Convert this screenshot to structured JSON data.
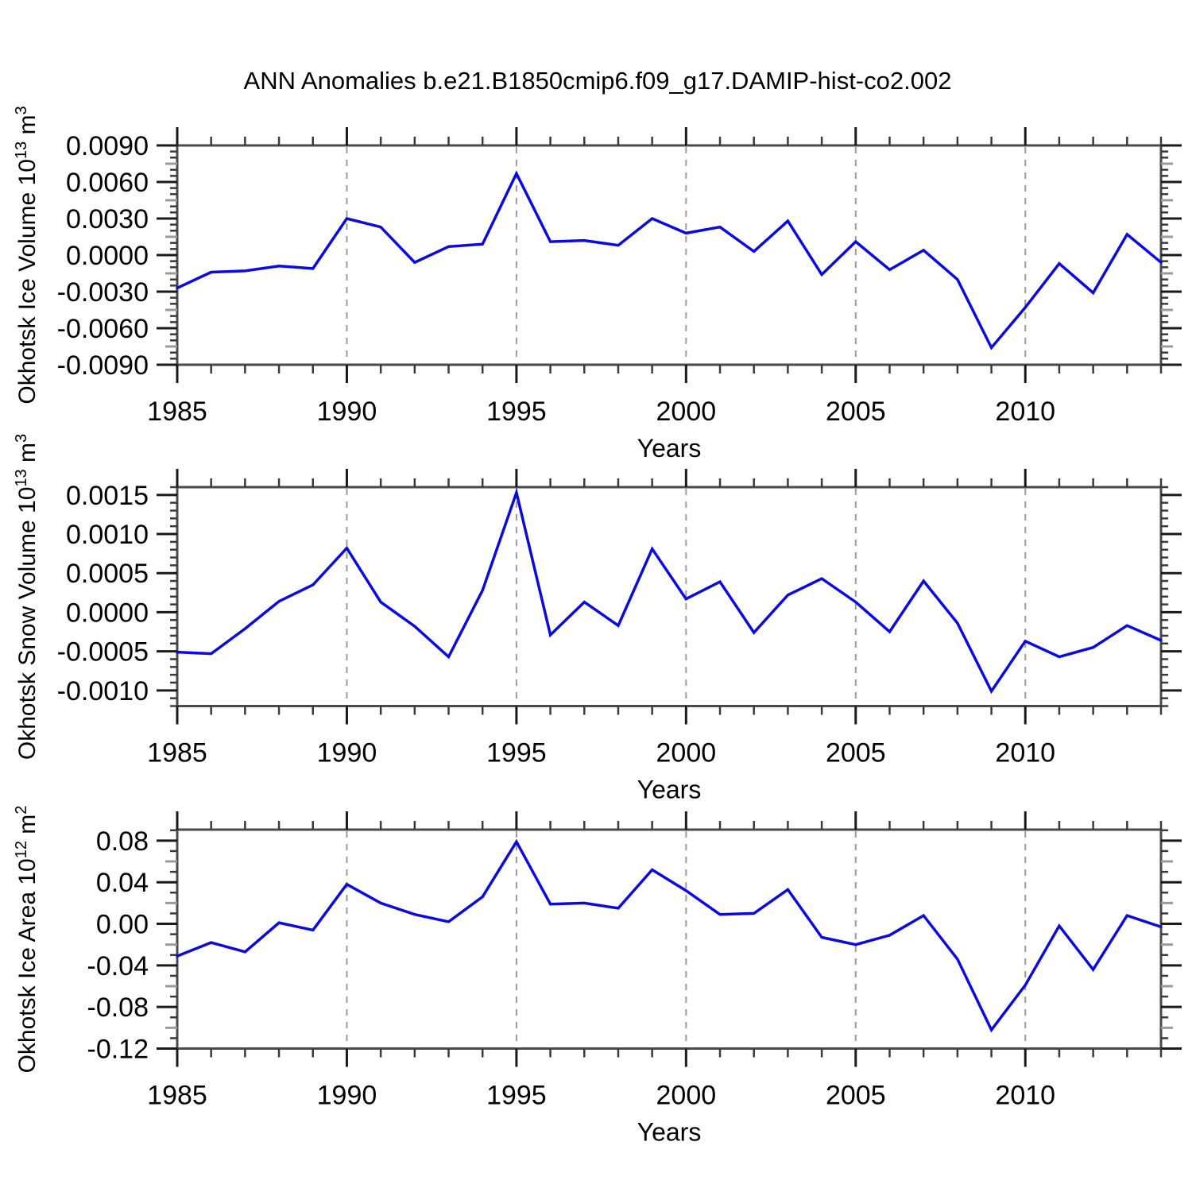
{
  "figure": {
    "title": "ANN Anomalies b.e21.B1850cmip6.f09_g17.DAMIP-hist-co2.002",
    "background": "#ffffff"
  },
  "style": {
    "line_color": "#0a0ae0",
    "frame_color": "#4a4a4a",
    "grid_color": "#9a9a9a",
    "major_tick_color": "#1a1a1a",
    "minor_tick_color": "#3a3a3a",
    "half_tick_color": "#9a9a9a",
    "text_color": "#000000"
  },
  "chart_data": [
    {
      "id": "ice_volume",
      "type": "line",
      "ylabel": {
        "prefix": "Okhotsk Ice Volume 10",
        "sup1": "13",
        "mid": " m",
        "sup2": "3"
      },
      "xlabel": "Years",
      "years": [
        1985,
        1986,
        1987,
        1988,
        1989,
        1990,
        1991,
        1992,
        1993,
        1994,
        1995,
        1996,
        1997,
        1998,
        1999,
        2000,
        2001,
        2002,
        2003,
        2004,
        2005,
        2006,
        2007,
        2008,
        2009,
        2010,
        2011,
        2012,
        2013,
        2014
      ],
      "values": [
        -0.0027,
        -0.0014,
        -0.0013,
        -0.0009,
        -0.0011,
        0.003,
        0.0023,
        -0.0006,
        0.0007,
        0.0009,
        0.0067,
        0.0011,
        0.0012,
        0.0008,
        0.003,
        0.0018,
        0.0023,
        0.0003,
        0.0028,
        -0.0016,
        0.0011,
        -0.0012,
        0.0004,
        -0.002,
        -0.0076,
        -0.0043,
        -0.0007,
        -0.0031,
        0.0017,
        -0.0006
      ],
      "xlim": [
        1985,
        2014
      ],
      "ylim": [
        -0.009,
        0.009
      ],
      "yticks": {
        "values": [
          0.009,
          0.006,
          0.003,
          0.0,
          -0.003,
          -0.006,
          -0.009
        ],
        "labels": [
          "0.0090",
          "0.0060",
          "0.0030",
          "0.0000",
          "-0.0030",
          "-0.0060",
          "-0.0090"
        ]
      },
      "ymajor_step": 0.003,
      "yminor_step": 0.0005,
      "xticks": {
        "values": [
          1985,
          1990,
          1995,
          2000,
          2005,
          2010
        ],
        "labels": [
          "1985",
          "1990",
          "1995",
          "2000",
          "2005",
          "2010"
        ]
      },
      "xminor_step": 1,
      "grid_years": [
        1990,
        1995,
        2000,
        2005,
        2010
      ]
    },
    {
      "id": "snow_volume",
      "type": "line",
      "ylabel": {
        "prefix": "Okhotsk Snow Volume 10",
        "sup1": "13",
        "mid": " m",
        "sup2": "3"
      },
      "xlabel": "Years",
      "years": [
        1985,
        1986,
        1987,
        1988,
        1989,
        1990,
        1991,
        1992,
        1993,
        1994,
        1995,
        1996,
        1997,
        1998,
        1999,
        2000,
        2001,
        2002,
        2003,
        2004,
        2005,
        2006,
        2007,
        2008,
        2009,
        2010,
        2011,
        2012,
        2013,
        2014
      ],
      "values": [
        -0.00051,
        -0.00053,
        -0.00021,
        0.00014,
        0.00035,
        0.00082,
        0.00013,
        -0.00018,
        -0.00057,
        0.00028,
        0.00153,
        -0.00029,
        0.00013,
        -0.00017,
        0.00081,
        0.00017,
        0.00039,
        -0.00026,
        0.00022,
        0.00043,
        0.00013,
        -0.00025,
        0.0004,
        -0.00014,
        -0.00101,
        -0.00037,
        -0.00057,
        -0.00045,
        -0.00017,
        -0.00036
      ],
      "xlim": [
        1985,
        2014
      ],
      "ylim": [
        -0.0012,
        0.0016
      ],
      "yticks": {
        "values": [
          0.0015,
          0.001,
          0.0005,
          0.0,
          -0.0005,
          -0.001
        ],
        "labels": [
          "0.0015",
          "0.0010",
          "0.0005",
          "0.0000",
          "-0.0005",
          "-0.0010"
        ]
      },
      "ymajor_step": 0.0005,
      "yminor_step": 0.0001,
      "xticks": {
        "values": [
          1985,
          1990,
          1995,
          2000,
          2005,
          2010
        ],
        "labels": [
          "1985",
          "1990",
          "1995",
          "2000",
          "2005",
          "2010"
        ]
      },
      "xminor_step": 1,
      "grid_years": [
        1990,
        1995,
        2000,
        2005,
        2010
      ]
    },
    {
      "id": "ice_area",
      "type": "line",
      "ylabel": {
        "prefix": "Okhotsk Ice Area 10",
        "sup1": "12",
        "mid": " m",
        "sup2": "2"
      },
      "xlabel": "Years",
      "years": [
        1985,
        1986,
        1987,
        1988,
        1989,
        1990,
        1991,
        1992,
        1993,
        1994,
        1995,
        1996,
        1997,
        1998,
        1999,
        2000,
        2001,
        2002,
        2003,
        2004,
        2005,
        2006,
        2007,
        2008,
        2009,
        2010,
        2011,
        2012,
        2013,
        2014
      ],
      "values": [
        -0.031,
        -0.018,
        -0.027,
        0.001,
        -0.006,
        0.038,
        0.02,
        0.009,
        0.002,
        0.026,
        0.079,
        0.019,
        0.02,
        0.015,
        0.052,
        0.032,
        0.009,
        0.01,
        0.033,
        -0.013,
        -0.02,
        -0.011,
        0.008,
        -0.034,
        -0.102,
        -0.059,
        -0.002,
        -0.044,
        0.008,
        -0.003
      ],
      "xlim": [
        1985,
        2014
      ],
      "ylim": [
        -0.12,
        0.0906
      ],
      "yticks": {
        "values": [
          0.08,
          0.04,
          0.0,
          -0.04,
          -0.08,
          -0.12
        ],
        "labels": [
          "0.08",
          "0.04",
          "0.00",
          "-0.04",
          "-0.08",
          "-0.12"
        ]
      },
      "ymajor_step": 0.04,
      "yminor_step": 0.01,
      "xticks": {
        "values": [
          1985,
          1990,
          1995,
          2000,
          2005,
          2010
        ],
        "labels": [
          "1985",
          "1990",
          "1995",
          "2000",
          "2005",
          "2010"
        ]
      },
      "xminor_step": 1,
      "grid_years": [
        1990,
        1995,
        2000,
        2005,
        2010
      ]
    }
  ]
}
